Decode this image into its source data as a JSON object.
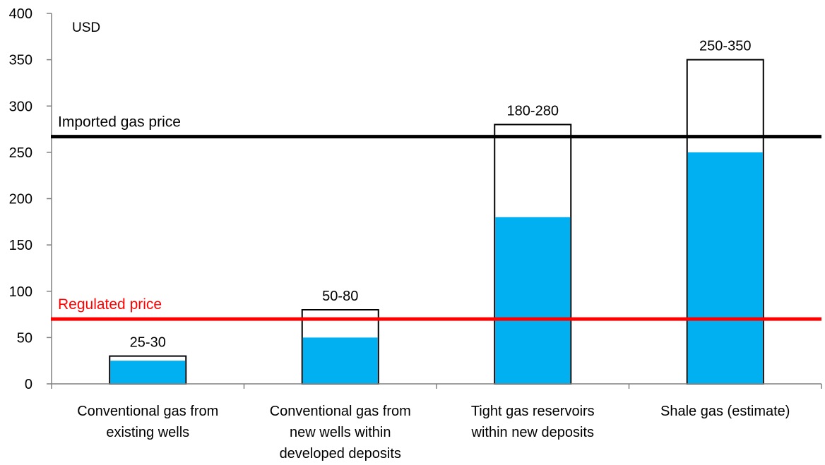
{
  "chart_data": {
    "type": "bar",
    "unit_label": "USD",
    "ylim": [
      0,
      400
    ],
    "yticks": [
      0,
      50,
      100,
      150,
      200,
      250,
      300,
      350,
      400
    ],
    "categories": [
      [
        "Conventional gas from",
        "existing wells"
      ],
      [
        "Conventional gas from",
        "new wells within",
        "developed deposits"
      ],
      [
        "Tight gas reservoirs",
        "within new deposits"
      ],
      [
        "Shale gas (estimate)"
      ]
    ],
    "ranges": [
      {
        "low": 25,
        "high": 30,
        "label": "25-30"
      },
      {
        "low": 50,
        "high": 80,
        "label": "50-80"
      },
      {
        "low": 180,
        "high": 280,
        "label": "180-280"
      },
      {
        "low": 250,
        "high": 350,
        "label": "250-350"
      }
    ],
    "reference_lines": [
      {
        "label": "Imported gas price",
        "value": 267,
        "color": "#000000"
      },
      {
        "label": "Regulated price",
        "value": 70,
        "color": "#ff0000"
      }
    ],
    "colors": {
      "low_fill": "#00b0f0",
      "outline": "#000000",
      "axis": "#808080"
    },
    "grid": false,
    "legend": "none"
  }
}
